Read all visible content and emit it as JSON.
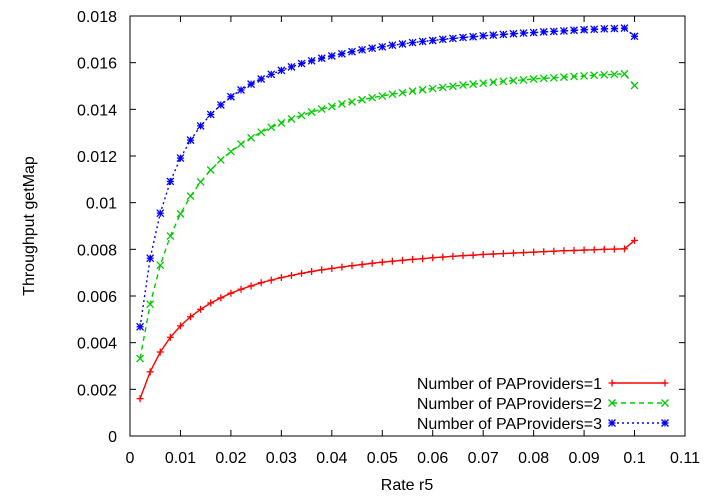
{
  "chart_data": {
    "type": "line",
    "title": "",
    "xlabel": "Rate r5",
    "ylabel": "Throughput getMap",
    "xlim": [
      0,
      0.11
    ],
    "ylim": [
      0,
      0.018
    ],
    "x_ticks": [
      "0",
      "0.01",
      "0.02",
      "0.03",
      "0.04",
      "0.05",
      "0.06",
      "0.07",
      "0.08",
      "0.09",
      "0.1",
      "0.11"
    ],
    "x_tick_values": [
      0,
      0.01,
      0.02,
      0.03,
      0.04,
      0.05,
      0.06,
      0.07,
      0.08,
      0.09,
      0.1,
      0.11
    ],
    "y_ticks": [
      "0",
      "0.002",
      "0.004",
      "0.006",
      "0.008",
      "0.01",
      "0.012",
      "0.014",
      "0.016",
      "0.018"
    ],
    "y_tick_values": [
      0,
      0.002,
      0.004,
      0.006,
      0.008,
      0.01,
      0.012,
      0.014,
      0.016,
      0.018
    ],
    "grid": false,
    "legend_position": "bottom-right",
    "x": [
      0.002,
      0.004,
      0.006,
      0.008,
      0.01,
      0.012,
      0.014,
      0.016,
      0.018,
      0.02,
      0.022,
      0.024,
      0.026,
      0.028,
      0.03,
      0.032,
      0.034,
      0.036,
      0.038,
      0.04,
      0.042,
      0.044,
      0.046,
      0.048,
      0.05,
      0.052,
      0.054,
      0.056,
      0.058,
      0.06,
      0.062,
      0.064,
      0.066,
      0.068,
      0.07,
      0.072,
      0.074,
      0.076,
      0.078,
      0.08,
      0.082,
      0.084,
      0.086,
      0.088,
      0.09,
      0.092,
      0.094,
      0.096,
      0.098,
      0.1
    ],
    "series": [
      {
        "name": "Number of PAProviders=1",
        "color": "#ff0000",
        "dash": "",
        "marker": "plus",
        "values": [
          0.0016,
          0.00275,
          0.0036,
          0.00423,
          0.00472,
          0.00511,
          0.00543,
          0.0057,
          0.00592,
          0.00612,
          0.00629,
          0.00643,
          0.00657,
          0.00668,
          0.00679,
          0.00688,
          0.00697,
          0.00705,
          0.00712,
          0.00718,
          0.00724,
          0.0073,
          0.00735,
          0.0074,
          0.00745,
          0.00749,
          0.00753,
          0.00757,
          0.0076,
          0.00764,
          0.00767,
          0.0077,
          0.00773,
          0.00775,
          0.00778,
          0.0078,
          0.00782,
          0.00784,
          0.00786,
          0.00788,
          0.0079,
          0.00792,
          0.00794,
          0.00795,
          0.00797,
          0.00798,
          0.008,
          0.00801,
          0.00802,
          0.00838
        ]
      },
      {
        "name": "Number of PAProviders=2",
        "color": "#00cc00",
        "dash": "5,4",
        "marker": "x",
        "values": [
          0.00332,
          0.00565,
          0.00732,
          0.00857,
          0.00952,
          0.01028,
          0.01089,
          0.0114,
          0.01183,
          0.01219,
          0.01251,
          0.01278,
          0.01302,
          0.01323,
          0.01342,
          0.01359,
          0.01374,
          0.01388,
          0.01401,
          0.01412,
          0.01423,
          0.01432,
          0.01441,
          0.0145,
          0.01457,
          0.01465,
          0.01471,
          0.01478,
          0.01484,
          0.01489,
          0.01494,
          0.01499,
          0.01504,
          0.01508,
          0.01512,
          0.01516,
          0.0152,
          0.01523,
          0.01526,
          0.0153,
          0.01533,
          0.01535,
          0.01538,
          0.01541,
          0.01543,
          0.01546,
          0.01548,
          0.0155,
          0.01552,
          0.01502
        ]
      },
      {
        "name": "Number of PAProviders=3",
        "color": "#0000ff",
        "dash": "2,3",
        "marker": "star",
        "values": [
          0.00468,
          0.00762,
          0.00955,
          0.01091,
          0.01191,
          0.01268,
          0.01329,
          0.01378,
          0.01419,
          0.01454,
          0.01483,
          0.01508,
          0.0153,
          0.0155,
          0.01567,
          0.01582,
          0.01596,
          0.01608,
          0.01619,
          0.01629,
          0.01638,
          0.01647,
          0.01655,
          0.01662,
          0.01668,
          0.01675,
          0.0168,
          0.01686,
          0.01691,
          0.01695,
          0.017,
          0.01704,
          0.01708,
          0.01711,
          0.01715,
          0.01718,
          0.01721,
          0.01724,
          0.01727,
          0.01729,
          0.01732,
          0.01734,
          0.01736,
          0.01739,
          0.01741,
          0.01743,
          0.01745,
          0.01746,
          0.01748,
          0.01713
        ]
      }
    ]
  }
}
